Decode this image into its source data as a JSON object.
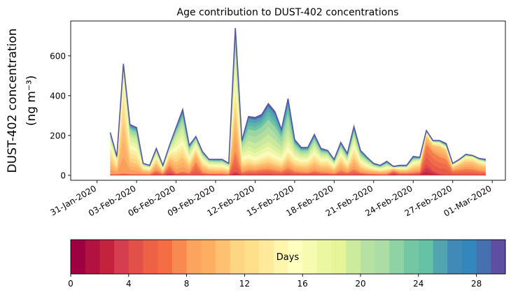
{
  "chart_data": [
    {
      "type": "area",
      "stacked": true,
      "title": "Age contribution to DUST-402 concentrations",
      "ylabel_line1": "DUST-402 concentration",
      "ylabel_line2": "(ng m⁻³)",
      "xlabel": "",
      "ylim": [
        -25,
        775
      ],
      "yticks": [
        0,
        200,
        400,
        600
      ],
      "xlim": [
        "2020-01-29T00:00",
        "2020-03-02T00:00"
      ],
      "xticks": [
        "31-Jan-2020",
        "03-Feb-2020",
        "06-Feb-2020",
        "09-Feb-2020",
        "12-Feb-2020",
        "15-Feb-2020",
        "18-Feb-2020",
        "21-Feb-2020",
        "24-Feb-2020",
        "27-Feb-2020",
        "01-Mar-2020"
      ],
      "xtick_dates": [
        "2020-01-31",
        "2020-02-03",
        "2020-02-06",
        "2020-02-09",
        "2020-02-12",
        "2020-02-15",
        "2020-02-18",
        "2020-02-21",
        "2020-02-24",
        "2020-02-27",
        "2020-03-01"
      ],
      "grid": false,
      "legend": "none",
      "x": [
        "2020-02-01T00:00",
        "2020-02-01T12:00",
        "2020-02-02T00:00",
        "2020-02-02T12:00",
        "2020-02-03T00:00",
        "2020-02-03T12:00",
        "2020-02-04T00:00",
        "2020-02-04T12:00",
        "2020-02-05T00:00",
        "2020-02-05T12:00",
        "2020-02-06T00:00",
        "2020-02-06T12:00",
        "2020-02-07T00:00",
        "2020-02-07T12:00",
        "2020-02-08T00:00",
        "2020-02-08T12:00",
        "2020-02-09T00:00",
        "2020-02-09T12:00",
        "2020-02-10T00:00",
        "2020-02-10T12:00",
        "2020-02-11T00:00",
        "2020-02-11T12:00",
        "2020-02-12T00:00",
        "2020-02-12T12:00",
        "2020-02-13T00:00",
        "2020-02-13T12:00",
        "2020-02-14T00:00",
        "2020-02-14T12:00",
        "2020-02-15T00:00",
        "2020-02-15T12:00",
        "2020-02-16T00:00",
        "2020-02-16T12:00",
        "2020-02-17T00:00",
        "2020-02-17T12:00",
        "2020-02-18T00:00",
        "2020-02-18T12:00",
        "2020-02-19T00:00",
        "2020-02-19T12:00",
        "2020-02-20T00:00",
        "2020-02-20T12:00",
        "2020-02-21T00:00",
        "2020-02-21T12:00",
        "2020-02-22T00:00",
        "2020-02-22T12:00",
        "2020-02-23T00:00",
        "2020-02-23T12:00",
        "2020-02-24T00:00",
        "2020-02-24T12:00",
        "2020-02-25T00:00",
        "2020-02-25T12:00",
        "2020-02-26T00:00",
        "2020-02-26T12:00",
        "2020-02-27T00:00",
        "2020-02-27T12:00",
        "2020-02-28T00:00",
        "2020-02-28T12:00",
        "2020-02-29T00:00",
        "2020-02-29T12:00"
      ],
      "total": [
        215,
        95,
        560,
        255,
        240,
        60,
        50,
        135,
        50,
        150,
        240,
        330,
        150,
        195,
        120,
        80,
        80,
        80,
        60,
        740,
        175,
        295,
        290,
        305,
        360,
        320,
        230,
        385,
        180,
        140,
        140,
        205,
        135,
        125,
        80,
        165,
        110,
        245,
        125,
        90,
        60,
        50,
        70,
        45,
        50,
        50,
        95,
        90,
        225,
        175,
        175,
        160,
        60,
        80,
        105,
        100,
        85,
        80
      ],
      "age_bands": [
        {
          "days": "0-4",
          "values": [
            2,
            2,
            3,
            2,
            2,
            2,
            2,
            6,
            3,
            15,
            4,
            5,
            3,
            5,
            4,
            3,
            3,
            3,
            2,
            22,
            4,
            6,
            6,
            8,
            8,
            6,
            5,
            8,
            5,
            4,
            4,
            6,
            4,
            4,
            3,
            5,
            4,
            6,
            5,
            3,
            3,
            2,
            2,
            12,
            4,
            4,
            5,
            8,
            60,
            25,
            8,
            6,
            3,
            3,
            3,
            3,
            3,
            3
          ]
        },
        {
          "days": "4-8",
          "values": [
            5,
            4,
            8,
            6,
            5,
            4,
            3,
            20,
            5,
            35,
            8,
            15,
            10,
            60,
            12,
            6,
            6,
            6,
            4,
            100,
            12,
            20,
            18,
            22,
            25,
            20,
            16,
            30,
            16,
            12,
            10,
            18,
            12,
            10,
            6,
            20,
            10,
            25,
            10,
            7,
            5,
            4,
            5,
            10,
            8,
            8,
            10,
            12,
            95,
            90,
            85,
            75,
            20,
            25,
            30,
            28,
            20,
            15
          ]
        },
        {
          "days": "8-12",
          "values": [
            70,
            25,
            250,
            60,
            50,
            18,
            15,
            35,
            12,
            35,
            55,
            70,
            35,
            45,
            30,
            20,
            18,
            18,
            14,
            180,
            30,
            30,
            25,
            28,
            32,
            28,
            25,
            40,
            30,
            28,
            30,
            40,
            30,
            32,
            20,
            40,
            22,
            55,
            25,
            18,
            14,
            12,
            14,
            10,
            12,
            12,
            22,
            25,
            40,
            35,
            50,
            42,
            15,
            25,
            35,
            35,
            28,
            25
          ]
        },
        {
          "days": "12-16",
          "values": [
            65,
            30,
            200,
            65,
            60,
            14,
            12,
            30,
            10,
            25,
            55,
            60,
            28,
            30,
            25,
            18,
            18,
            18,
            14,
            160,
            30,
            30,
            25,
            30,
            35,
            30,
            25,
            40,
            30,
            25,
            26,
            40,
            25,
            28,
            15,
            35,
            20,
            50,
            25,
            18,
            12,
            10,
            14,
            5,
            10,
            10,
            22,
            20,
            15,
            10,
            15,
            15,
            10,
            15,
            20,
            20,
            18,
            18
          ]
        },
        {
          "days": "16-20",
          "values": [
            45,
            20,
            70,
            60,
            60,
            12,
            10,
            22,
            10,
            20,
            65,
            80,
            38,
            30,
            25,
            18,
            18,
            18,
            14,
            140,
            50,
            60,
            55,
            60,
            70,
            60,
            50,
            80,
            40,
            30,
            30,
            45,
            30,
            25,
            16,
            30,
            22,
            55,
            25,
            20,
            12,
            10,
            14,
            4,
            8,
            8,
            16,
            12,
            8,
            8,
            8,
            8,
            6,
            6,
            10,
            8,
            8,
            8
          ]
        },
        {
          "days": "20-24",
          "values": [
            18,
            10,
            20,
            40,
            38,
            7,
            5,
            15,
            7,
            15,
            35,
            60,
            22,
            18,
            15,
            10,
            10,
            10,
            8,
            90,
            35,
            85,
            95,
            95,
            110,
            100,
            70,
            110,
            35,
            25,
            25,
            35,
            20,
            16,
            12,
            20,
            18,
            32,
            20,
            14,
            8,
            7,
            12,
            2,
            4,
            4,
            10,
            8,
            4,
            4,
            4,
            4,
            3,
            3,
            4,
            4,
            4,
            4
          ]
        },
        {
          "days": "24-28",
          "values": [
            7,
            3,
            6,
            16,
            18,
            2,
            2,
            5,
            2,
            4,
            15,
            28,
            10,
            5,
            6,
            3,
            5,
            5,
            3,
            35,
            10,
            55,
            55,
            50,
            65,
            62,
            35,
            60,
            17,
            11,
            11,
            15,
            10,
            8,
            6,
            11,
            10,
            16,
            12,
            7,
            5,
            4,
            6,
            1,
            2,
            2,
            6,
            4,
            2,
            2,
            3,
            6,
            2,
            2,
            2,
            1,
            3,
            4
          ]
        },
        {
          "days": "28-30",
          "values": [
            3,
            1,
            3,
            6,
            7,
            1,
            1,
            2,
            1,
            1,
            3,
            12,
            4,
            2,
            3,
            2,
            2,
            2,
            1,
            13,
            4,
            9,
            11,
            12,
            15,
            14,
            4,
            17,
            7,
            5,
            4,
            6,
            4,
            2,
            2,
            4,
            4,
            6,
            3,
            3,
            1,
            1,
            3,
            1,
            2,
            2,
            4,
            1,
            1,
            1,
            2,
            4,
            1,
            1,
            1,
            1,
            1,
            3
          ]
        }
      ]
    },
    {
      "type": "colorbar",
      "label": "Days",
      "range": [
        0,
        30
      ],
      "ticks": [
        "0",
        "4",
        "8",
        "12",
        "16",
        "20",
        "24",
        "28"
      ],
      "tick_values": [
        0,
        4,
        8,
        12,
        16,
        20,
        24,
        28
      ],
      "colormap": "Spectral",
      "colors": [
        "#9e0142",
        "#b1123f",
        "#c4233d",
        "#d53e4f",
        "#e2504a",
        "#ed6245",
        "#f46d43",
        "#f88950",
        "#fba45d",
        "#fdae61",
        "#fec171",
        "#fed583",
        "#fee08b",
        "#feea9a",
        "#fff5ac",
        "#ffffbf",
        "#f6fbb0",
        "#ecf7a1",
        "#e6f598",
        "#cdeb9d",
        "#b5e1a2",
        "#abdda4",
        "#8fd2a4",
        "#74c7a5",
        "#66c2a5",
        "#52a5ae",
        "#4189b7",
        "#3288bd",
        "#4670b0",
        "#5e4fa2"
      ]
    }
  ]
}
